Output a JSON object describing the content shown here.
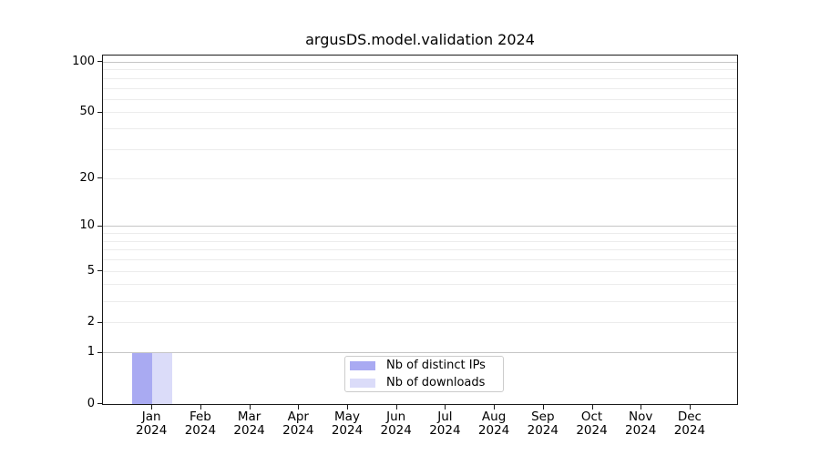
{
  "title": "argusDS.model.validation 2024",
  "chart_data": {
    "type": "bar",
    "title": "argusDS.model.validation 2024",
    "xlabel": "",
    "ylabel": "",
    "yscale": "log1p",
    "ylim": [
      0,
      112
    ],
    "grid": true,
    "legend_position": "lower center",
    "categories": [
      {
        "month": "Jan",
        "year": "2024"
      },
      {
        "month": "Feb",
        "year": "2024"
      },
      {
        "month": "Mar",
        "year": "2024"
      },
      {
        "month": "Apr",
        "year": "2024"
      },
      {
        "month": "May",
        "year": "2024"
      },
      {
        "month": "Jun",
        "year": "2024"
      },
      {
        "month": "Jul",
        "year": "2024"
      },
      {
        "month": "Aug",
        "year": "2024"
      },
      {
        "month": "Sep",
        "year": "2024"
      },
      {
        "month": "Oct",
        "year": "2024"
      },
      {
        "month": "Nov",
        "year": "2024"
      },
      {
        "month": "Dec",
        "year": "2024"
      }
    ],
    "series": [
      {
        "name": "Nb of distinct IPs",
        "color": "#a9aaf2",
        "values": [
          1,
          0,
          0,
          0,
          0,
          0,
          0,
          0,
          0,
          0,
          0,
          0
        ]
      },
      {
        "name": "Nb of downloads",
        "color": "#dbdcf9",
        "values": [
          1,
          0,
          0,
          0,
          0,
          0,
          0,
          0,
          0,
          0,
          0,
          0
        ]
      }
    ],
    "y_tick_values": [
      0,
      1,
      2,
      5,
      10,
      20,
      50,
      100
    ],
    "y_tick_labels": [
      "0",
      "1",
      "2",
      "5",
      "10",
      "20",
      "50",
      "100"
    ],
    "y_major_gridlines": [
      1,
      10,
      100
    ],
    "y_minor_gridlines": [
      2,
      3,
      4,
      5,
      6,
      7,
      8,
      9,
      20,
      30,
      40,
      50,
      60,
      70,
      80,
      90
    ],
    "colors": {
      "major_grid": "#c6c6c6",
      "minor_grid": "#ececec",
      "spine": "#1a1a1a",
      "text": "#000000",
      "background": "#ffffff"
    }
  }
}
